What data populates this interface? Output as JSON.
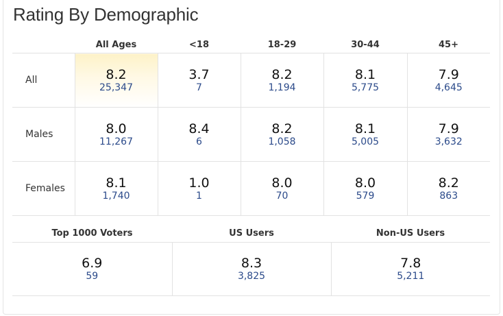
{
  "title": "Rating By Demographic",
  "age_columns": [
    "All Ages",
    "<18",
    "18-29",
    "30-44",
    "45+"
  ],
  "rows": [
    {
      "label": "All",
      "cells": [
        {
          "rating": "8.2",
          "votes": "25,347"
        },
        {
          "rating": "3.7",
          "votes": "7"
        },
        {
          "rating": "8.2",
          "votes": "1,194"
        },
        {
          "rating": "8.1",
          "votes": "5,775"
        },
        {
          "rating": "7.9",
          "votes": "4,645"
        }
      ]
    },
    {
      "label": "Males",
      "cells": [
        {
          "rating": "8.0",
          "votes": "11,267"
        },
        {
          "rating": "8.4",
          "votes": "6"
        },
        {
          "rating": "8.2",
          "votes": "1,058"
        },
        {
          "rating": "8.1",
          "votes": "5,005"
        },
        {
          "rating": "7.9",
          "votes": "3,632"
        }
      ]
    },
    {
      "label": "Females",
      "cells": [
        {
          "rating": "8.1",
          "votes": "1,740"
        },
        {
          "rating": "1.0",
          "votes": "1"
        },
        {
          "rating": "8.0",
          "votes": "70"
        },
        {
          "rating": "8.0",
          "votes": "579"
        },
        {
          "rating": "8.2",
          "votes": "863"
        }
      ]
    }
  ],
  "groups": [
    {
      "label": "Top 1000 Voters",
      "rating": "6.9",
      "votes": "59"
    },
    {
      "label": "US Users",
      "rating": "8.3",
      "votes": "3,825"
    },
    {
      "label": "Non-US Users",
      "rating": "7.8",
      "votes": "5,211"
    }
  ],
  "colors": {
    "vote_count": "#2b4a8a",
    "highlight": "#fdf2c8",
    "border": "#e2e2e2"
  }
}
